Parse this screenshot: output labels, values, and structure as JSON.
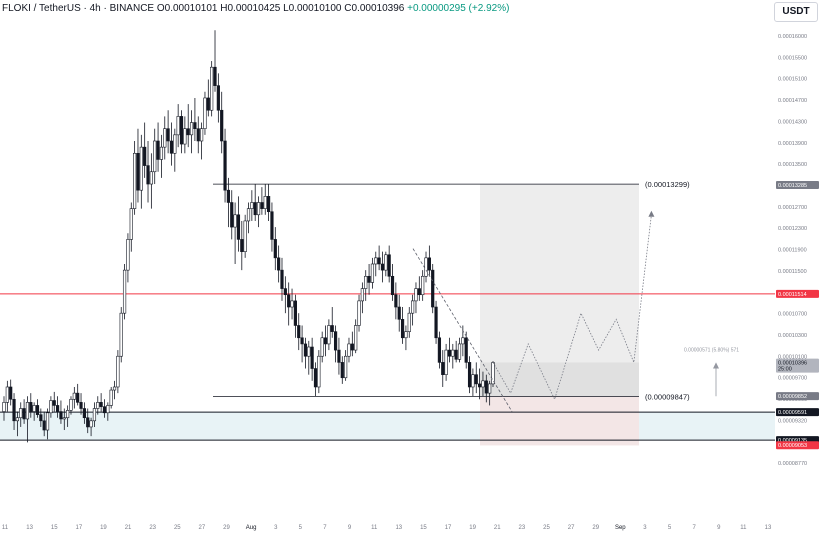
{
  "header": {
    "symbol": "FLOKI / TetherUS · 4h · BINANCE",
    "ohlc": "O0.00010101 H0.00010425 L0.00010100 C0.00010396",
    "change": "+0.00000295 (+2.92%)"
  },
  "currency_button": "USDT",
  "chart_data": {
    "type": "candlestick",
    "timeframe": "4h",
    "y_range": [
      8.65e-05,
      0.00016
    ],
    "y_tick_labels": [
      "0.00016000",
      "0.00015500",
      "0.00015100",
      "0.00014700",
      "0.00014300",
      "0.00013900",
      "0.00013500",
      "0.00013100",
      "0.00012700",
      "0.00012300",
      "0.00011900",
      "0.00011500",
      "0.00011100",
      "0.00010700",
      "0.00010300",
      "0.00010100",
      "0.00009700",
      "0.00009600",
      "0.00009320",
      "0.00008840",
      "0.00008770"
    ],
    "x_tick_labels": [
      "11",
      "13",
      "15",
      "17",
      "19",
      "21",
      "23",
      "25",
      "27",
      "29",
      "Aug",
      "3",
      "5",
      "7",
      "9",
      "11",
      "13",
      "15",
      "17",
      "19",
      "21",
      "23",
      "25",
      "27",
      "29",
      "Sep",
      "3",
      "5",
      "7",
      "9",
      "11",
      "13"
    ],
    "price_levels": [
      {
        "label": "0.00013299",
        "value": 0.00013299,
        "kind": "range-high"
      },
      {
        "label": "0.00009847",
        "value": 9.847e-05,
        "kind": "range-low"
      }
    ],
    "axis_badges": [
      {
        "text": "0.00013285",
        "value": 0.00013285,
        "color": "#787b86",
        "text_color": "#ffffff"
      },
      {
        "text": "0.00011514",
        "value": 0.00011514,
        "color": "#f23645",
        "text_color": "#ffffff"
      },
      {
        "text": "0.00010396",
        "sub": "25:00",
        "value": 0.00010396,
        "color": "#b2b5be",
        "text_color": "#131722"
      },
      {
        "text": "0.00009852",
        "value": 9.852e-05,
        "color": "#787b86",
        "text_color": "#ffffff"
      },
      {
        "text": "0.00009591",
        "value": 9.591e-05,
        "color": "#131722",
        "text_color": "#ffffff"
      },
      {
        "text": "0.00009135",
        "value": 9.135e-05,
        "color": "#131722",
        "text_color": "#ffffff"
      },
      {
        "text": "0.00009053",
        "value": 9.053e-05,
        "color": "#f23645",
        "text_color": "#ffffff"
      }
    ],
    "measure_label": "0.00000571 (5.80%) 571",
    "horizontal_lines": [
      {
        "value": 0.00011514,
        "color": "#f23645"
      },
      {
        "value": 9.591e-05,
        "color": "#131722"
      },
      {
        "value": 9.135e-05,
        "color": "#131722"
      }
    ],
    "support_zone": {
      "from": 9.135e-05,
      "to": 9.591e-05,
      "color": "#e8f3f6"
    },
    "candles": [
      [
        9.6e-05,
        9.85e-05,
        9.45e-05,
        9.75e-05
      ],
      [
        9.75e-05,
        0.000101,
        9.6e-05,
        0.0001
      ],
      [
        0.0001,
        0.0001012,
        9.7e-05,
        9.8e-05
      ],
      [
        9.8e-05,
        9.9e-05,
        9.3e-05,
        9.45e-05
      ],
      [
        9.45e-05,
        9.6e-05,
        9.2e-05,
        9.5e-05
      ],
      [
        9.5e-05,
        9.75e-05,
        9.35e-05,
        9.65e-05
      ],
      [
        9.65e-05,
        9.8e-05,
        9.4e-05,
        9.48e-05
      ],
      [
        9.48e-05,
        9.85e-05,
        9.1e-05,
        9.75e-05
      ],
      [
        9.75e-05,
        9.9e-05,
        9.5e-05,
        9.6e-05
      ],
      [
        9.6e-05,
        9.75e-05,
        9.45e-05,
        9.7e-05
      ],
      [
        9.7e-05,
        9.8e-05,
        9.5e-05,
        9.55e-05
      ],
      [
        9.55e-05,
        9.65e-05,
        9.35e-05,
        9.45e-05
      ],
      [
        9.45e-05,
        9.6e-05,
        9.2e-05,
        9.3e-05
      ],
      [
        9.3e-05,
        9.65e-05,
        9.15e-05,
        9.58e-05
      ],
      [
        9.58e-05,
        9.85e-05,
        9.5e-05,
        9.78e-05
      ],
      [
        9.78e-05,
        9.92e-05,
        9.6e-05,
        9.7e-05
      ],
      [
        9.7e-05,
        9.85e-05,
        9.5e-05,
        9.6e-05
      ],
      [
        9.6e-05,
        9.78e-05,
        9.4e-05,
        9.48e-05
      ],
      [
        9.48e-05,
        9.65e-05,
        9.3e-05,
        9.5e-05
      ],
      [
        9.5e-05,
        9.7e-05,
        9.35e-05,
        9.62e-05
      ],
      [
        9.62e-05,
        9.85e-05,
        9.55e-05,
        9.8e-05
      ],
      [
        9.8e-05,
        0.0001,
        9.65e-05,
        9.9e-05
      ],
      [
        9.9e-05,
        0.0001005,
        9.7e-05,
        9.75e-05
      ],
      [
        9.75e-05,
        9.9e-05,
        9.55e-05,
        9.65e-05
      ],
      [
        9.65e-05,
        9.75e-05,
        9.4e-05,
        9.5e-05
      ],
      [
        9.5e-05,
        9.65e-05,
        9.25e-05,
        9.35e-05
      ],
      [
        9.35e-05,
        9.5e-05,
        9.2e-05,
        9.45e-05
      ],
      [
        9.45e-05,
        9.75e-05,
        9.35e-05,
        9.65e-05
      ],
      [
        9.65e-05,
        9.85e-05,
        9.55e-05,
        9.75e-05
      ],
      [
        9.75e-05,
        9.9e-05,
        9.6e-05,
        9.68e-05
      ],
      [
        9.68e-05,
        9.8e-05,
        9.5e-05,
        9.58e-05
      ],
      [
        9.58e-05,
        9.75e-05,
        9.45e-05,
        9.7e-05
      ],
      [
        9.7e-05,
        0.0001,
        9.65e-05,
        9.95e-05
      ],
      [
        9.95e-05,
        0.000101,
        9.8e-05,
        0.0001
      ],
      [
        0.0001,
        0.000106,
        9.9e-05,
        0.000105
      ],
      [
        0.000105,
        0.000113,
        0.000104,
        0.000112
      ],
      [
        0.000112,
        0.00012,
        0.000111,
        0.000119
      ],
      [
        0.000119,
        0.000125,
        0.000117,
        0.000124
      ],
      [
        0.000124,
        0.00013,
        0.000122,
        0.000129
      ],
      [
        0.000129,
        0.00014,
        0.000128,
        0.000138
      ],
      [
        0.000138,
        0.000142,
        0.00013,
        0.000132
      ],
      [
        0.000132,
        0.000141,
        0.000129,
        0.000139
      ],
      [
        0.000139,
        0.000143,
        0.000134,
        0.000136
      ],
      [
        0.000136,
        0.00014,
        0.00013,
        0.000133
      ],
      [
        0.000133,
        0.000138,
        0.000129,
        0.000135
      ],
      [
        0.000135,
        0.000142,
        0.000133,
        0.00014
      ],
      [
        0.00014,
        0.000143,
        0.000135,
        0.000137
      ],
      [
        0.000137,
        0.000141,
        0.000134,
        0.000139
      ],
      [
        0.000139,
        0.000144,
        0.000137,
        0.000142
      ],
      [
        0.000142,
        0.000145,
        0.000138,
        0.00014
      ],
      [
        0.00014,
        0.000143,
        0.000136,
        0.000138
      ],
      [
        0.000138,
        0.000142,
        0.000135,
        0.000141
      ],
      [
        0.000141,
        0.000146,
        0.000139,
        0.000144
      ],
      [
        0.000144,
        0.000145,
        0.000138,
        0.0001395
      ],
      [
        0.0001395,
        0.000144,
        0.000138,
        0.000142
      ],
      [
        0.000142,
        0.000146,
        0.000139,
        0.000141
      ],
      [
        0.000141,
        0.000145,
        0.000138,
        0.000143
      ],
      [
        0.000143,
        0.000147,
        0.00014,
        0.000142
      ],
      [
        0.000142,
        0.000144,
        0.000138,
        0.00014
      ],
      [
        0.00014,
        0.000143,
        0.000137,
        0.000142
      ],
      [
        0.000142,
        0.000148,
        0.000141,
        0.000147
      ],
      [
        0.000147,
        0.00015,
        0.000144,
        0.000145
      ],
      [
        0.000145,
        0.000153,
        0.000144,
        0.000152
      ],
      [
        0.000152,
        0.000158,
        0.000148,
        0.000149
      ],
      [
        0.000149,
        0.000151,
        0.000143,
        0.000145
      ],
      [
        0.000145,
        0.000148,
        0.000138,
        0.00014
      ],
      [
        0.00014,
        0.000142,
        0.00013,
        0.000132
      ],
      [
        0.000132,
        0.000134,
        0.000126,
        0.00013
      ],
      [
        0.00013,
        0.000132,
        0.000124,
        0.000126
      ],
      [
        0.000126,
        0.00013,
        0.00012,
        0.000128
      ],
      [
        0.000128,
        0.000131,
        0.000122,
        0.000124
      ],
      [
        0.000124,
        0.000127,
        0.000119,
        0.000122
      ],
      [
        0.000122,
        0.000128,
        0.000121,
        0.000127
      ],
      [
        0.000127,
        0.00013,
        0.000125,
        0.000129
      ],
      [
        0.000129,
        0.000132,
        0.000127,
        0.00013
      ],
      [
        0.00013,
        0.000133,
        0.000127,
        0.000128
      ],
      [
        0.000128,
        0.000131,
        0.000126,
        0.00013
      ],
      [
        0.00013,
        0.0001325,
        0.000128,
        0.000129
      ],
      [
        0.000129,
        0.000133,
        0.000128,
        0.000131
      ],
      [
        0.000131,
        0.000133,
        0.000127,
        0.0001285
      ],
      [
        0.0001285,
        0.00013,
        0.000122,
        0.000124
      ],
      [
        0.000124,
        0.000126,
        0.000119,
        0.000121
      ],
      [
        0.000121,
        0.000123,
        0.000117,
        0.000119
      ],
      [
        0.000119,
        0.000121,
        0.000114,
        0.000116
      ],
      [
        0.000116,
        0.000118,
        0.000112,
        0.000115
      ],
      [
        0.000115,
        0.000117,
        0.00011,
        0.000113
      ],
      [
        0.000113,
        0.000116,
        0.000111,
        0.000114
      ],
      [
        0.000114,
        0.000115,
        0.000108,
        0.00011
      ],
      [
        0.00011,
        0.000112,
        0.000106,
        0.000108
      ],
      [
        0.000108,
        0.00011,
        0.000104,
        0.000107
      ],
      [
        0.000107,
        0.000108,
        0.000103,
        0.000105
      ],
      [
        0.000105,
        0.0001075,
        0.000102,
        0.0001065
      ],
      [
        0.0001065,
        0.000108,
        0.000101,
        0.000103
      ],
      [
        0.000103,
        0.000104,
        9.85e-05,
        0.0001
      ],
      [
        0.0001,
        0.000106,
        9.9e-05,
        0.000105
      ],
      [
        0.000105,
        0.000109,
        0.000104,
        0.000108
      ],
      [
        0.000108,
        0.00011,
        0.000105,
        0.000107
      ],
      [
        0.000107,
        0.000111,
        0.000106,
        0.00011
      ],
      [
        0.00011,
        0.000113,
        0.000108,
        0.000109
      ],
      [
        0.000109,
        0.00011,
        0.000104,
        0.000106
      ],
      [
        0.000106,
        0.000108,
        0.000102,
        0.000104
      ],
      [
        0.000104,
        0.000105,
        0.0001005,
        0.0001015
      ],
      [
        0.0001015,
        0.000106,
        0.000101,
        0.000105
      ],
      [
        0.000105,
        0.000108,
        0.000104,
        0.000107
      ],
      [
        0.000107,
        0.000109,
        0.000105,
        0.000106
      ],
      [
        0.000106,
        0.000111,
        0.0001055,
        0.00011
      ],
      [
        0.00011,
        0.000115,
        0.000109,
        0.000114
      ],
      [
        0.000114,
        0.000117,
        0.000112,
        0.000116
      ],
      [
        0.000116,
        0.000119,
        0.000114,
        0.000118
      ],
      [
        0.000118,
        0.00012,
        0.000115,
        0.000117
      ],
      [
        0.000117,
        0.000121,
        0.000116,
        0.00012
      ],
      [
        0.00012,
        0.000122,
        0.000118,
        0.000121
      ],
      [
        0.000121,
        0.000123,
        0.000119,
        0.00012
      ],
      [
        0.00012,
        0.000122,
        0.000117,
        0.000119
      ],
      [
        0.000119,
        0.000122,
        0.000118,
        0.0001215
      ],
      [
        0.0001215,
        0.000123,
        0.000117,
        0.000118
      ],
      [
        0.000118,
        0.00012,
        0.000114,
        0.000115
      ],
      [
        0.000115,
        0.000117,
        0.000111,
        0.000113
      ],
      [
        0.000113,
        0.000115,
        0.000109,
        0.000111
      ],
      [
        0.000111,
        0.000113,
        0.000107,
        0.000108
      ],
      [
        0.000108,
        0.00011,
        0.000106,
        0.000109
      ],
      [
        0.000109,
        0.000113,
        0.000108,
        0.000112
      ],
      [
        0.000112,
        0.000115,
        0.00011,
        0.000114
      ],
      [
        0.000114,
        0.000117,
        0.000112,
        0.000116
      ],
      [
        0.000116,
        0.000118,
        0.000114,
        0.000115
      ],
      [
        0.000115,
        0.000119,
        0.000114,
        0.000118
      ],
      [
        0.000118,
        0.000122,
        0.000117,
        0.000121
      ],
      [
        0.000121,
        0.000123,
        0.000118,
        0.000119
      ],
      [
        0.000119,
        0.00012,
        0.000112,
        0.000113
      ],
      [
        0.000113,
        0.000114,
        0.000107,
        0.000108
      ],
      [
        0.000108,
        0.000109,
        0.000103,
        0.000104
      ],
      [
        0.000104,
        0.000106,
        0.0001,
        0.000102
      ],
      [
        0.000102,
        0.000107,
        0.000101,
        0.000106
      ],
      [
        0.000106,
        0.000108,
        0.000104,
        0.000105
      ],
      [
        0.000105,
        0.000107,
        0.000103,
        0.000106
      ],
      [
        0.000106,
        0.0001075,
        0.000104,
        0.0001045
      ],
      [
        0.0001045,
        0.000108,
        0.000104,
        0.000107
      ],
      [
        0.000107,
        0.00011,
        0.000105,
        0.000108
      ],
      [
        0.000108,
        0.000109,
        0.000103,
        0.000104
      ],
      [
        0.000104,
        0.000105,
        9.9e-05,
        0.0001
      ],
      [
        0.0001,
        0.000103,
        9.85e-05,
        0.000102
      ],
      [
        0.000102,
        0.000104,
        9.9e-05,
        0.0001005
      ],
      [
        0.0001005,
        0.000103,
        9.8e-05,
        0.0001
      ],
      [
        0.0001,
        0.0001025,
        9.85e-05,
        0.000101
      ],
      [
        0.000101,
        0.000102,
        9.75e-05,
        9.9e-05
      ],
      [
        9.9e-05,
        0.000101,
        9.7e-05,
        0.0001005
      ],
      [
        0.0001005,
        0.0001042,
        0.0001,
        0.000104
      ]
    ],
    "projection_path": [
      [
        0.000104,
        0
      ],
      [
        9.9e-05,
        2
      ],
      [
        0.000107,
        4
      ],
      [
        9.8e-05,
        7
      ],
      [
        0.000112,
        10
      ],
      [
        0.000106,
        12
      ],
      [
        0.000111,
        14
      ],
      [
        0.000104,
        16
      ],
      [
        0.000128,
        18
      ]
    ]
  }
}
